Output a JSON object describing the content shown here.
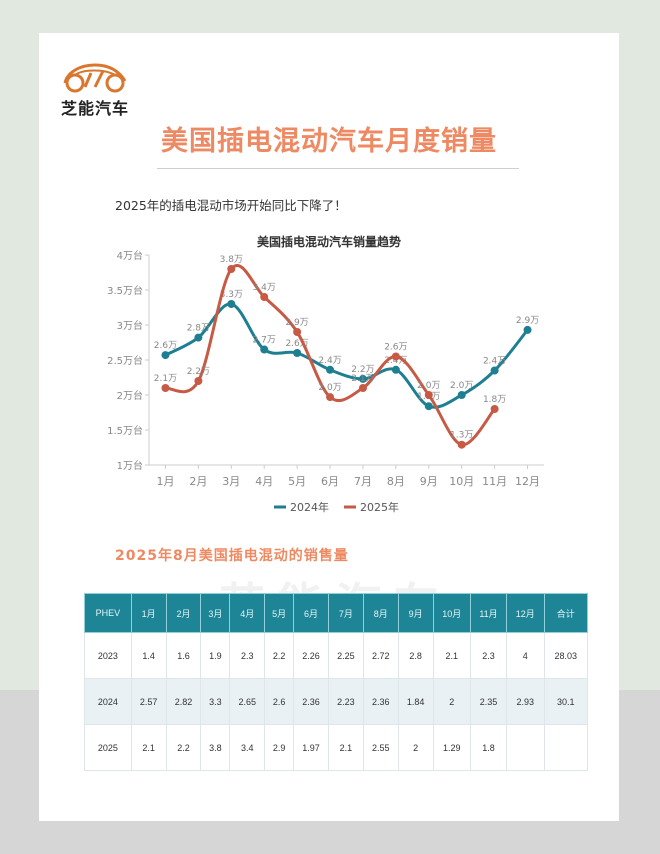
{
  "brand": {
    "name": "芝能汽车",
    "logo_icon": "car-outline-logo"
  },
  "header": {
    "title": "美国插电混动汽车月度销量"
  },
  "subtitle": "2025年的插电混动市场开始同比下降了！",
  "section_title": "2025年8月美国插电混动的销售量",
  "watermark": "芝能汽车",
  "colors": {
    "accent": "#ee8a63",
    "series_2024": "#1e7f92",
    "series_2025": "#c65a45",
    "table_header": "#1e8596"
  },
  "chart_data": {
    "type": "line",
    "title": "美国插电混动汽车销量趋势",
    "xlabel": "",
    "ylabel": "",
    "categories": [
      "1月",
      "2月",
      "3月",
      "4月",
      "5月",
      "6月",
      "7月",
      "8月",
      "9月",
      "10月",
      "11月",
      "12月"
    ],
    "y_ticks": [
      "1万台",
      "1.5万台",
      "2万台",
      "2.5万台",
      "3万台",
      "3.5万台",
      "4万台"
    ],
    "ylim": [
      1,
      4
    ],
    "grid": false,
    "legend_position": "bottom",
    "series": [
      {
        "name": "2024年",
        "color": "#1e7f92",
        "values": [
          2.57,
          2.82,
          3.3,
          2.65,
          2.6,
          2.36,
          2.23,
          2.36,
          1.84,
          2.0,
          2.35,
          2.93
        ],
        "labels": [
          "2.6万",
          "2.8万",
          "3.3万",
          "2.7万",
          "2.6万",
          "2.4万",
          "2.2万",
          "2.4万",
          "1.8万",
          "2.0万",
          "2.4万",
          "2.9万"
        ]
      },
      {
        "name": "2025年",
        "color": "#c65a45",
        "values": [
          2.1,
          2.2,
          3.8,
          3.4,
          2.9,
          1.97,
          2.1,
          2.55,
          2.0,
          1.29,
          1.8
        ],
        "labels": [
          "2.1万",
          "2.2万",
          "3.8万",
          "3.4万",
          "2.9万",
          "2.0万",
          "2.1万",
          "2.6万",
          "2.0万",
          "1.3万",
          "1.8万"
        ]
      }
    ]
  },
  "table": {
    "headers": [
      "PHEV",
      "1月",
      "2月",
      "3月",
      "4月",
      "5月",
      "6月",
      "7月",
      "8月",
      "9月",
      "10月",
      "11月",
      "12月",
      "合计"
    ],
    "rows": [
      [
        "2023",
        "1.4",
        "1.6",
        "1.9",
        "2.3",
        "2.2",
        "2.26",
        "2.25",
        "2.72",
        "2.8",
        "2.1",
        "2.3",
        "4",
        "28.03"
      ],
      [
        "2024",
        "2.57",
        "2.82",
        "3.3",
        "2.65",
        "2.6",
        "2.36",
        "2.23",
        "2.36",
        "1.84",
        "2",
        "2.35",
        "2.93",
        "30.1"
      ],
      [
        "2025",
        "2.1",
        "2.2",
        "3.8",
        "3.4",
        "2.9",
        "1.97",
        "2.1",
        "2.55",
        "2",
        "1.29",
        "1.8",
        "",
        ""
      ]
    ]
  }
}
